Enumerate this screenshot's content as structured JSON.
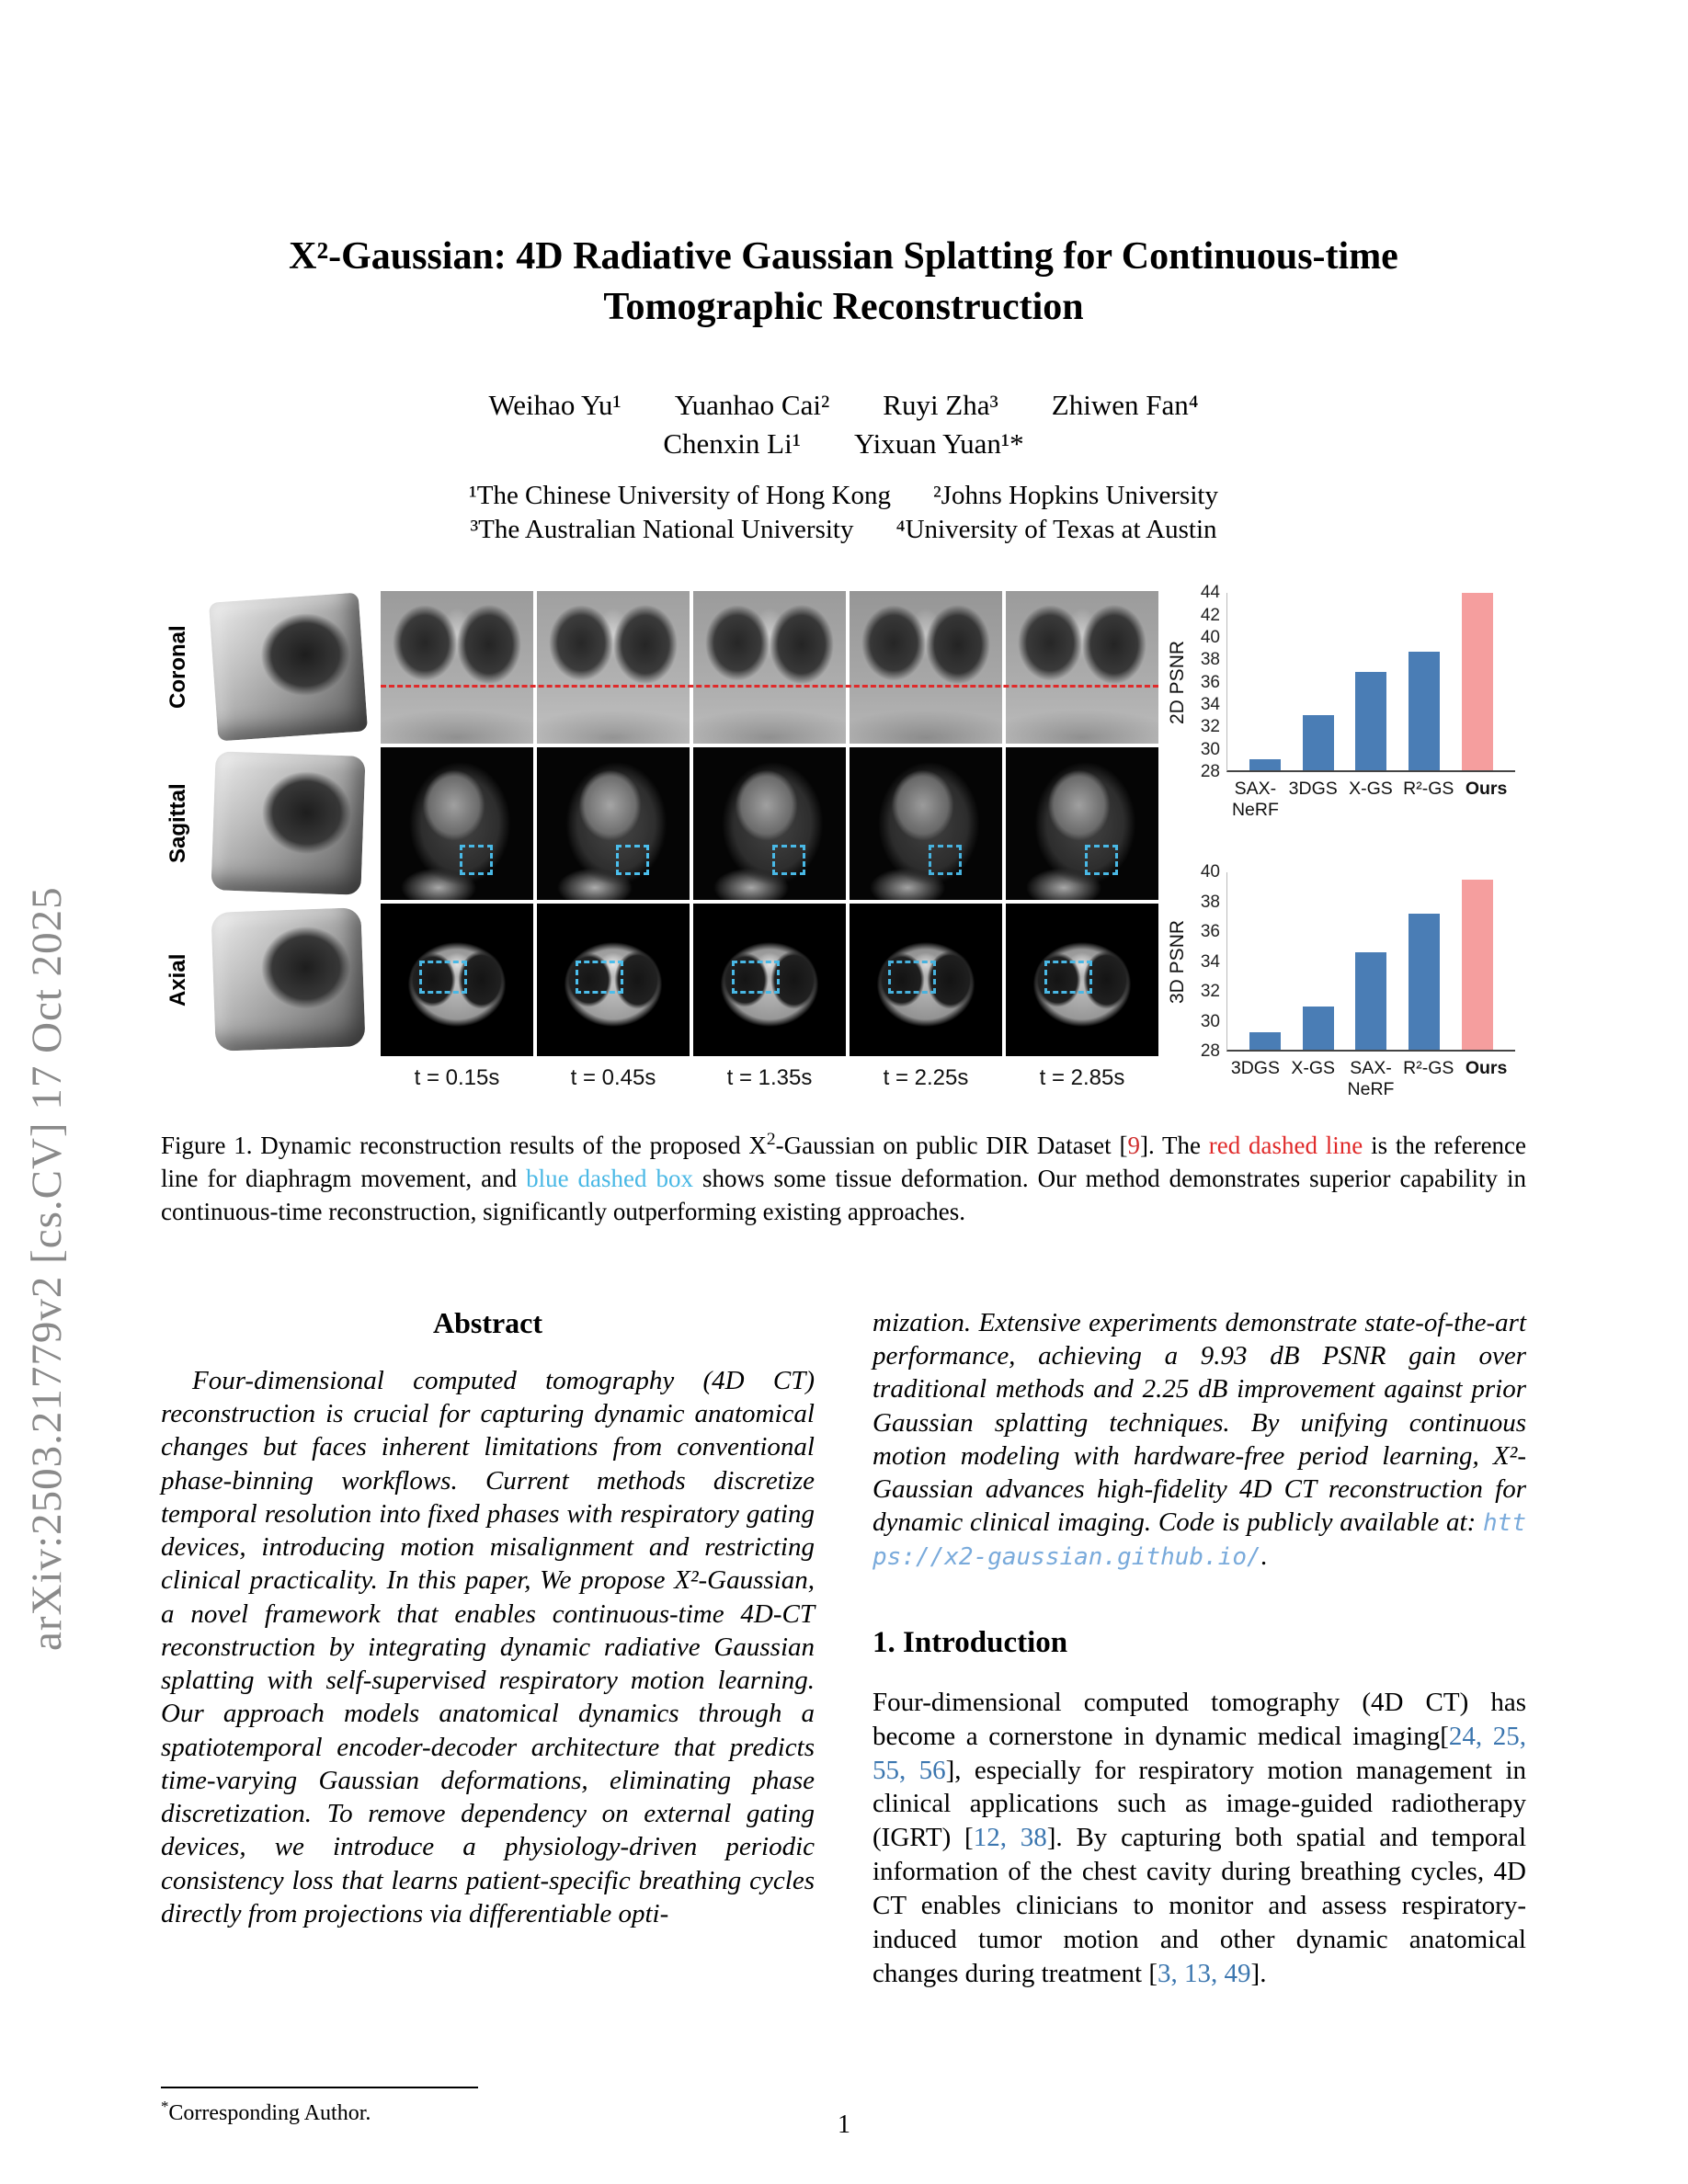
{
  "watermark": "arXiv:2503.21779v2  [cs.CV]  17 Oct 2025",
  "title": "X²-Gaussian: 4D Radiative Gaussian Splatting for Continuous-time Tomographic Reconstruction",
  "authors": {
    "line1": [
      "Weihao Yu¹",
      "Yuanhao Cai²",
      "Ruyi Zha³",
      "Zhiwen Fan⁴"
    ],
    "line2": [
      "Chenxin Li¹",
      "Yixuan Yuan¹*"
    ]
  },
  "affiliations": {
    "line1": [
      "¹The Chinese University of Hong Kong",
      "²Johns Hopkins University"
    ],
    "line2": [
      "³The Australian National University",
      "⁴University of Texas at Austin"
    ]
  },
  "figure": {
    "row_labels": [
      "Coronal",
      "Sagittal",
      "Axial"
    ],
    "time_labels": [
      "t = 0.15s",
      "t = 0.45s",
      "t = 1.35s",
      "t = 2.25s",
      "t = 2.85s"
    ],
    "caption": {
      "part1": "Figure 1. Dynamic reconstruction results of the proposed X",
      "sup": "2",
      "part2": "-Gaussian on public DIR Dataset [",
      "cite": "9",
      "part3": "]. The ",
      "red_text": "red dashed line",
      "part4": " is the reference line for diaphragm movement, and ",
      "blue_text": "blue dashed box",
      "part5": " shows some tissue deformation. Our method demonstrates superior capability in continuous-time reconstruction, significantly outperforming existing approaches."
    }
  },
  "chart_data": [
    {
      "type": "bar",
      "title": "",
      "ylabel": "2D PSNR",
      "xlabel": "",
      "categories": [
        "SAX-NeRF",
        "3DGS",
        "X-GS",
        "R²-GS",
        "Ours"
      ],
      "values": [
        29.0,
        33.0,
        36.9,
        38.7,
        44.0
      ],
      "ylim": [
        28,
        44
      ],
      "ytick_step": 2,
      "grid": false,
      "legend": "none",
      "bar_color": "#4a7db5",
      "highlight_color": "#f59e9e",
      "highlight_index": 4
    },
    {
      "type": "bar",
      "title": "",
      "ylabel": "3D PSNR",
      "xlabel": "",
      "categories": [
        "3DGS",
        "X-GS",
        "SAX-NeRF",
        "R²-GS",
        "Ours"
      ],
      "values": [
        29.2,
        30.9,
        34.6,
        37.2,
        39.5
      ],
      "ylim": [
        28,
        40
      ],
      "ytick_step": 2,
      "grid": false,
      "legend": "none",
      "bar_color": "#4a7db5",
      "highlight_color": "#f59e9e",
      "highlight_index": 4
    }
  ],
  "abstract": {
    "heading": "Abstract",
    "part1": "Four-dimensional computed tomography (4D CT) reconstruction is crucial for capturing dynamic anatomical changes but faces inherent limitations from conventional phase-binning workflows. Current methods discretize temporal resolution into fixed phases with respiratory gating devices, introducing motion misalignment and restricting clinical practicality. In this paper, We propose X²-Gaussian, a novel framework that enables continuous-time 4D-CT reconstruction by integrating dynamic radiative Gaussian splatting with self-supervised respiratory motion learning. Our approach models anatomical dynamics through a spatiotemporal encoder-decoder architecture that predicts time-varying Gaussian deformations, eliminating phase discretization. To remove dependency on external gating devices, we introduce a physiology-driven periodic consistency loss that learns patient-specific breathing cycles directly from projections via differentiable opti-",
    "part2": "mization. Extensive experiments demonstrate state-of-the-art performance, achieving a 9.93 dB PSNR gain over traditional methods and 2.25 dB improvement against prior Gaussian splatting techniques. By unifying continuous motion modeling with hardware-free period learning, X²-Gaussian advances high-fidelity 4D CT reconstruction for dynamic clinical imaging. Code is publicly available at: ",
    "link": "https://x2-gaussian.github.io/",
    "after_link": "."
  },
  "intro": {
    "heading": "1. Introduction",
    "p1_a": "Four-dimensional computed tomography (4D CT) has become a cornerstone in dynamic medical imaging[",
    "cites1": "24, 25, 55, 56",
    "p1_b": "], especially for respiratory motion management in clinical applications such as image-guided radiotherapy (IGRT) [",
    "cites2": "12, 38",
    "p1_c": "]. By capturing both spatial and temporal information of the chest cavity during breathing cycles, 4D CT enables clinicians to monitor and assess respiratory-induced tumor motion and other dynamic anatomical changes during treatment [",
    "cites3": "3, 13, 49",
    "p1_d": "]."
  },
  "footnote": {
    "marker": "*",
    "text": "Corresponding Author."
  },
  "page_number": "1"
}
